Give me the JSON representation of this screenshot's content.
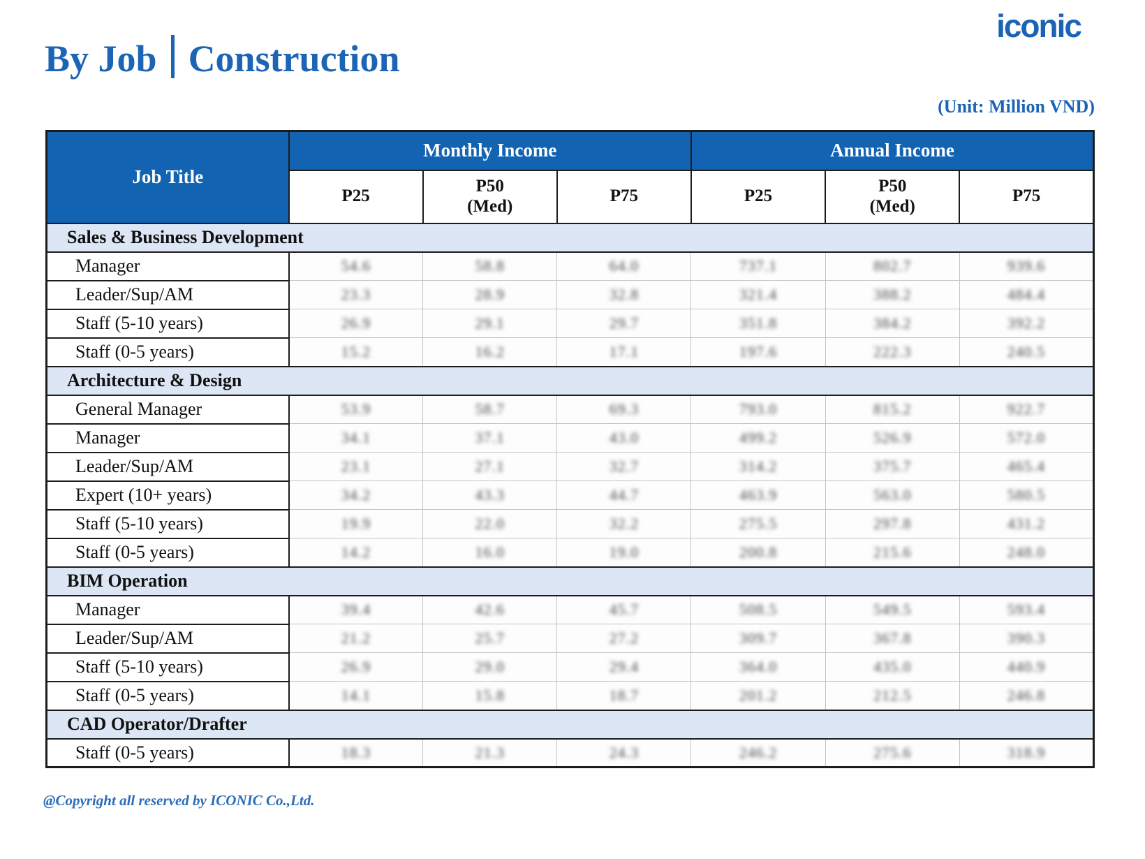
{
  "header": {
    "logo": "iconic",
    "title_left": "By Job",
    "title_right": "Construction",
    "unit_note": "(Unit: Million VND)"
  },
  "colors": {
    "primary_blue": "#1263b1",
    "light_blue_band": "#dce6f4",
    "title_blue": "#1c64b4"
  },
  "table": {
    "job_title_header": "Job Title",
    "group_headers": [
      "Monthly Income",
      "Annual Income"
    ],
    "sub_headers": [
      {
        "label": "P25",
        "sub": ""
      },
      {
        "label": "P50",
        "sub": "(Med)"
      },
      {
        "label": "P75",
        "sub": ""
      },
      {
        "label": "P25",
        "sub": ""
      },
      {
        "label": "P50",
        "sub": "(Med)"
      },
      {
        "label": "P75",
        "sub": ""
      }
    ],
    "values_blurred": true,
    "sections": [
      {
        "name": "Sales & Business Development",
        "rows": [
          {
            "label": "Manager",
            "values": [
              "54.6",
              "58.8",
              "64.0",
              "737.1",
              "802.7",
              "939.6"
            ]
          },
          {
            "label": "Leader/Sup/AM",
            "values": [
              "23.3",
              "28.9",
              "32.8",
              "321.4",
              "388.2",
              "484.4"
            ]
          },
          {
            "label": "Staff (5-10 years)",
            "values": [
              "26.9",
              "29.1",
              "29.7",
              "351.8",
              "384.2",
              "392.2"
            ]
          },
          {
            "label": "Staff (0-5 years)",
            "values": [
              "15.2",
              "16.2",
              "17.1",
              "197.6",
              "222.3",
              "240.5"
            ]
          }
        ]
      },
      {
        "name": "Architecture & Design",
        "rows": [
          {
            "label": "General Manager",
            "values": [
              "53.9",
              "58.7",
              "69.3",
              "793.0",
              "815.2",
              "922.7"
            ]
          },
          {
            "label": "Manager",
            "values": [
              "34.1",
              "37.1",
              "43.0",
              "499.2",
              "526.9",
              "572.0"
            ]
          },
          {
            "label": "Leader/Sup/AM",
            "values": [
              "23.1",
              "27.1",
              "32.7",
              "314.2",
              "375.7",
              "465.4"
            ]
          },
          {
            "label": "Expert (10+ years)",
            "values": [
              "34.2",
              "43.3",
              "44.7",
              "463.9",
              "563.0",
              "580.5"
            ]
          },
          {
            "label": "Staff (5-10 years)",
            "values": [
              "19.9",
              "22.0",
              "32.2",
              "275.5",
              "297.8",
              "431.2"
            ]
          },
          {
            "label": "Staff (0-5 years)",
            "values": [
              "14.2",
              "16.0",
              "19.0",
              "200.8",
              "215.6",
              "248.0"
            ]
          }
        ]
      },
      {
        "name": "BIM Operation",
        "rows": [
          {
            "label": "Manager",
            "values": [
              "39.4",
              "42.6",
              "45.7",
              "508.5",
              "549.5",
              "593.4"
            ]
          },
          {
            "label": "Leader/Sup/AM",
            "values": [
              "21.2",
              "25.7",
              "27.2",
              "309.7",
              "367.8",
              "390.3"
            ]
          },
          {
            "label": "Staff (5-10 years)",
            "values": [
              "26.9",
              "29.0",
              "29.4",
              "364.0",
              "435.0",
              "440.9"
            ]
          },
          {
            "label": "Staff (0-5 years)",
            "values": [
              "14.1",
              "15.8",
              "18.7",
              "201.2",
              "212.5",
              "246.8"
            ]
          }
        ]
      },
      {
        "name": "CAD Operator/Drafter",
        "rows": [
          {
            "label": "Staff (0-5 years)",
            "values": [
              "18.3",
              "21.3",
              "24.3",
              "246.2",
              "275.6",
              "318.9"
            ]
          }
        ]
      }
    ]
  },
  "footer": {
    "text": "@Copyright all reserved by ICONIC Co.,Ltd."
  }
}
